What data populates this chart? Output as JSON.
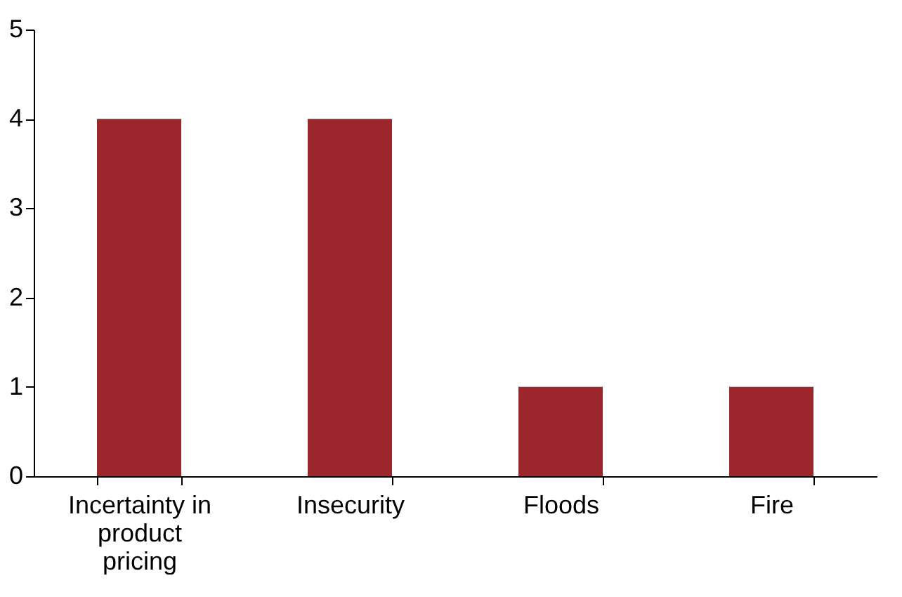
{
  "chart_data": {
    "type": "bar",
    "categories": [
      "Incertainty in product pricing",
      "Insecurity",
      "Floods",
      "Fire"
    ],
    "values": [
      4,
      4,
      1,
      1
    ],
    "color": "#9b262c",
    "ylim": [
      0,
      5
    ],
    "yticks": [
      0,
      1,
      2,
      3,
      4,
      5
    ],
    "grid": false
  }
}
